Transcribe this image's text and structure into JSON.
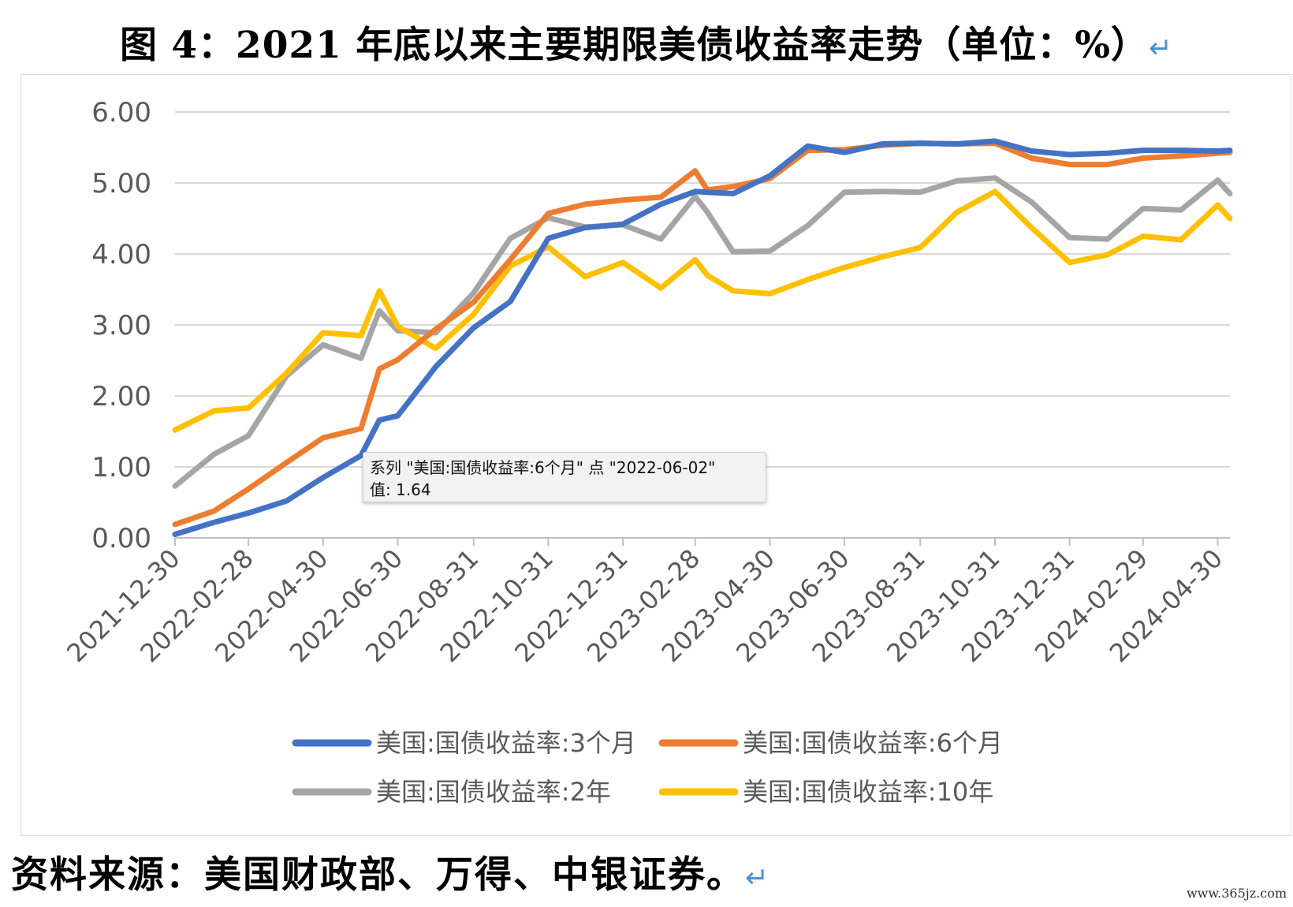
{
  "figure": {
    "title": "图 4：2021 年底以来主要期限美债收益率走势（单位：%）",
    "return_mark": "↵",
    "source": "资料来源：美国财政部、万得、中银证券。",
    "watermark": "www.365jz.com"
  },
  "tooltip": {
    "line1": "系列 \"美国:国债收益率:6个月\" 点 \"2022-06-02\"",
    "line2": "值: 1.64"
  },
  "chart_data": {
    "type": "line",
    "title": "",
    "xlabel": "",
    "ylabel": "",
    "ylim": [
      0,
      6
    ],
    "yticks": [
      "0.00",
      "1.00",
      "2.00",
      "3.00",
      "4.00",
      "5.00",
      "6.00"
    ],
    "grid": true,
    "legend_position": "bottom",
    "x_tick_labels": [
      "2021-12-30",
      "2022-02-28",
      "2022-04-30",
      "2022-06-30",
      "2022-08-31",
      "2022-10-31",
      "2022-12-31",
      "2023-02-28",
      "2023-04-30",
      "2023-06-30",
      "2023-08-31",
      "2023-10-31",
      "2023-12-31",
      "2024-02-29",
      "2024-04-30"
    ],
    "x": [
      "2021-12-30",
      "2022-01-31",
      "2022-02-28",
      "2022-03-31",
      "2022-04-30",
      "2022-05-31",
      "2022-06-15",
      "2022-06-30",
      "2022-07-31",
      "2022-08-31",
      "2022-09-30",
      "2022-10-31",
      "2022-11-30",
      "2022-12-31",
      "2023-01-31",
      "2023-02-28",
      "2023-03-10",
      "2023-03-31",
      "2023-04-30",
      "2023-05-31",
      "2023-06-30",
      "2023-07-31",
      "2023-08-31",
      "2023-09-30",
      "2023-10-31",
      "2023-11-30",
      "2023-12-31",
      "2024-01-31",
      "2024-02-29",
      "2024-03-31",
      "2024-04-30",
      "2024-05-10"
    ],
    "series": [
      {
        "name": "美国:国债收益率:3个月",
        "color": "#4472c4",
        "values": [
          0.05,
          0.22,
          0.35,
          0.52,
          0.85,
          1.16,
          1.66,
          1.72,
          2.41,
          2.96,
          3.33,
          4.22,
          4.37,
          4.42,
          4.7,
          4.88,
          4.87,
          4.85,
          5.1,
          5.52,
          5.43,
          5.55,
          5.56,
          5.55,
          5.59,
          5.45,
          5.4,
          5.42,
          5.46,
          5.46,
          5.45,
          5.46
        ]
      },
      {
        "name": "美国:国债收益率:6个月",
        "color": "#ed7d31",
        "values": [
          0.19,
          0.38,
          0.69,
          1.06,
          1.41,
          1.54,
          2.38,
          2.51,
          2.94,
          3.32,
          3.92,
          4.57,
          4.7,
          4.76,
          4.8,
          5.17,
          4.9,
          4.95,
          5.06,
          5.46,
          5.47,
          5.53,
          5.56,
          5.55,
          5.56,
          5.35,
          5.26,
          5.26,
          5.35,
          5.38,
          5.42,
          5.43
        ]
      },
      {
        "name": "美国:国债收益率:2年",
        "color": "#a5a5a5",
        "values": [
          0.73,
          1.18,
          1.44,
          2.28,
          2.72,
          2.53,
          3.2,
          2.92,
          2.89,
          3.45,
          4.22,
          4.51,
          4.38,
          4.41,
          4.21,
          4.81,
          4.59,
          4.03,
          4.04,
          4.4,
          4.87,
          4.88,
          4.87,
          5.03,
          5.07,
          4.73,
          4.23,
          4.21,
          4.64,
          4.62,
          5.04,
          4.85
        ]
      },
      {
        "name": "美国:国债收益率:10年",
        "color": "#ffc000",
        "values": [
          1.52,
          1.79,
          1.83,
          2.32,
          2.89,
          2.85,
          3.48,
          2.98,
          2.67,
          3.15,
          3.83,
          4.1,
          3.68,
          3.88,
          3.52,
          3.92,
          3.7,
          3.48,
          3.44,
          3.64,
          3.81,
          3.96,
          4.09,
          4.59,
          4.88,
          4.37,
          3.88,
          3.99,
          4.25,
          4.2,
          4.69,
          4.5
        ]
      }
    ]
  }
}
